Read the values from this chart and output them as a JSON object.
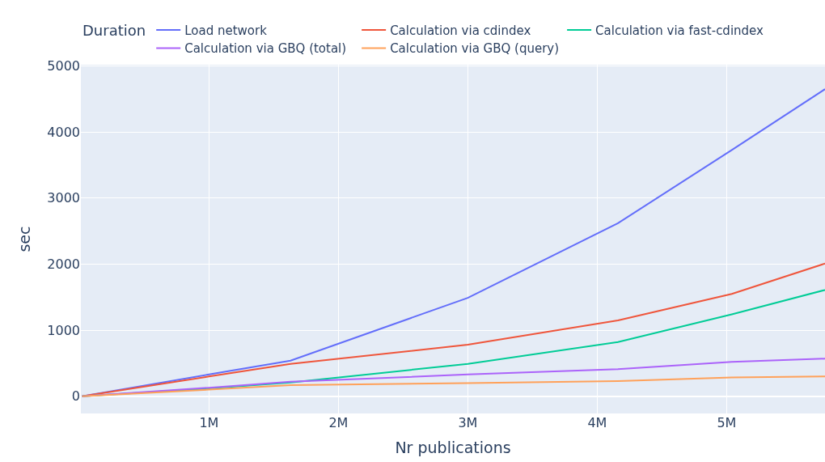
{
  "chart_data": {
    "type": "line",
    "xlabel": "Nr publications",
    "ylabel": "sec",
    "legend_title": "Duration",
    "x": [
      20000,
      1000000,
      1630000,
      3000000,
      4160000,
      5040000,
      5760000
    ],
    "series": [
      {
        "name": "Load network",
        "color": "#636efa",
        "values": [
          0,
          330,
          540,
          1490,
          2620,
          3730,
          4650
        ]
      },
      {
        "name": "Calculation via cdindex",
        "color": "#ef553b",
        "values": [
          0,
          300,
          490,
          780,
          1150,
          1550,
          2010
        ]
      },
      {
        "name": "Calculation via fast-cdindex",
        "color": "#00cc96",
        "values": [
          0,
          120,
          210,
          490,
          820,
          1240,
          1610
        ]
      },
      {
        "name": "Calculation via GBQ (total)",
        "color": "#ab63fa",
        "values": [
          0,
          130,
          220,
          330,
          410,
          520,
          570
        ]
      },
      {
        "name": "Calculation via GBQ (query)",
        "color": "#ffa15a",
        "values": [
          0,
          100,
          170,
          200,
          230,
          285,
          300
        ]
      }
    ],
    "xlim": [
      10000,
      5760000
    ],
    "xticks": [
      {
        "value": 1000000,
        "label": "1M"
      },
      {
        "value": 2000000,
        "label": "2M"
      },
      {
        "value": 3000000,
        "label": "3M"
      },
      {
        "value": 4000000,
        "label": "4M"
      },
      {
        "value": 5000000,
        "label": "5M"
      }
    ],
    "ylim": [
      -260,
      5020
    ],
    "yticks": [
      0,
      1000,
      2000,
      3000,
      4000,
      5000
    ],
    "grid": true,
    "legend": "top",
    "marker": "none",
    "line_style": "solid"
  }
}
